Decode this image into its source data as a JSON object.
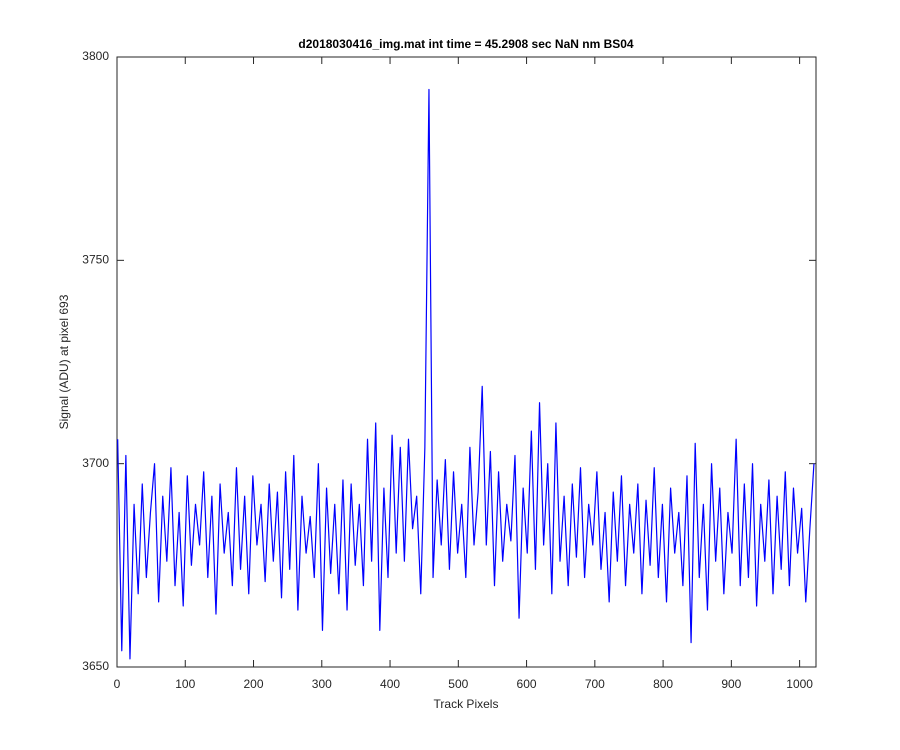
{
  "chart_data": {
    "type": "line",
    "title": "d2018030416_img.mat int time = 45.2908 sec  NaN nm BS04",
    "xlabel": "Track Pixels",
    "ylabel": "Signal (ADU) at pixel 693",
    "xlim": [
      0,
      1024
    ],
    "ylim": [
      3650,
      3800
    ],
    "xticks": [
      0,
      100,
      200,
      300,
      400,
      500,
      600,
      700,
      800,
      900,
      1000
    ],
    "yticks": [
      3650,
      3700,
      3750,
      3800
    ],
    "grid": false,
    "x": [
      1,
      7,
      13,
      19,
      25,
      31,
      37,
      43,
      49,
      55,
      61,
      67,
      73,
      79,
      85,
      91,
      97,
      103,
      109,
      115,
      121,
      127,
      133,
      139,
      145,
      151,
      157,
      163,
      169,
      175,
      181,
      187,
      193,
      199,
      205,
      211,
      217,
      223,
      229,
      235,
      241,
      247,
      253,
      259,
      265,
      271,
      277,
      283,
      289,
      295,
      301,
      307,
      313,
      319,
      325,
      331,
      337,
      343,
      349,
      355,
      361,
      367,
      373,
      379,
      385,
      391,
      397,
      403,
      409,
      415,
      421,
      427,
      433,
      439,
      445,
      451,
      457,
      463,
      469,
      475,
      481,
      487,
      493,
      499,
      505,
      511,
      517,
      523,
      529,
      535,
      541,
      547,
      553,
      559,
      565,
      571,
      577,
      583,
      589,
      595,
      601,
      607,
      613,
      619,
      625,
      631,
      637,
      643,
      649,
      655,
      661,
      667,
      673,
      679,
      685,
      691,
      697,
      703,
      709,
      715,
      721,
      727,
      733,
      739,
      745,
      751,
      757,
      763,
      769,
      775,
      781,
      787,
      793,
      799,
      805,
      811,
      817,
      823,
      829,
      835,
      841,
      847,
      853,
      859,
      865,
      871,
      877,
      883,
      889,
      895,
      901,
      907,
      913,
      919,
      925,
      931,
      937,
      943,
      949,
      955,
      961,
      967,
      973,
      979,
      985,
      991,
      997,
      1003,
      1009,
      1015,
      1021
    ],
    "series": [
      {
        "color": "#0000ff",
        "values": [
          3706,
          3654,
          3702,
          3652,
          3690,
          3668,
          3695,
          3672,
          3688,
          3700,
          3666,
          3692,
          3676,
          3699,
          3670,
          3688,
          3665,
          3697,
          3675,
          3690,
          3680,
          3698,
          3672,
          3692,
          3663,
          3695,
          3678,
          3688,
          3670,
          3699,
          3674,
          3692,
          3668,
          3697,
          3680,
          3690,
          3671,
          3695,
          3676,
          3693,
          3667,
          3698,
          3674,
          3702,
          3664,
          3692,
          3678,
          3687,
          3672,
          3700,
          3659,
          3694,
          3673,
          3690,
          3668,
          3696,
          3664,
          3695,
          3675,
          3690,
          3670,
          3706,
          3676,
          3710,
          3659,
          3694,
          3672,
          3707,
          3678,
          3704,
          3676,
          3706,
          3684,
          3692,
          3668,
          3704,
          3792,
          3672,
          3696,
          3680,
          3701,
          3674,
          3698,
          3678,
          3690,
          3672,
          3704,
          3680,
          3693,
          3719,
          3680,
          3703,
          3670,
          3698,
          3676,
          3690,
          3681,
          3702,
          3662,
          3694,
          3678,
          3708,
          3674,
          3715,
          3680,
          3700,
          3668,
          3710,
          3676,
          3692,
          3670,
          3695,
          3677,
          3699,
          3672,
          3690,
          3680,
          3698,
          3674,
          3688,
          3666,
          3693,
          3676,
          3697,
          3670,
          3690,
          3678,
          3695,
          3668,
          3691,
          3675,
          3699,
          3672,
          3690,
          3666,
          3694,
          3678,
          3688,
          3670,
          3697,
          3656,
          3705,
          3672,
          3690,
          3664,
          3700,
          3676,
          3694,
          3668,
          3688,
          3678,
          3706,
          3670,
          3695,
          3672,
          3700,
          3665,
          3690,
          3676,
          3696,
          3668,
          3692,
          3674,
          3698,
          3670,
          3694,
          3678,
          3689,
          3666,
          3684,
          3700
        ]
      }
    ]
  }
}
